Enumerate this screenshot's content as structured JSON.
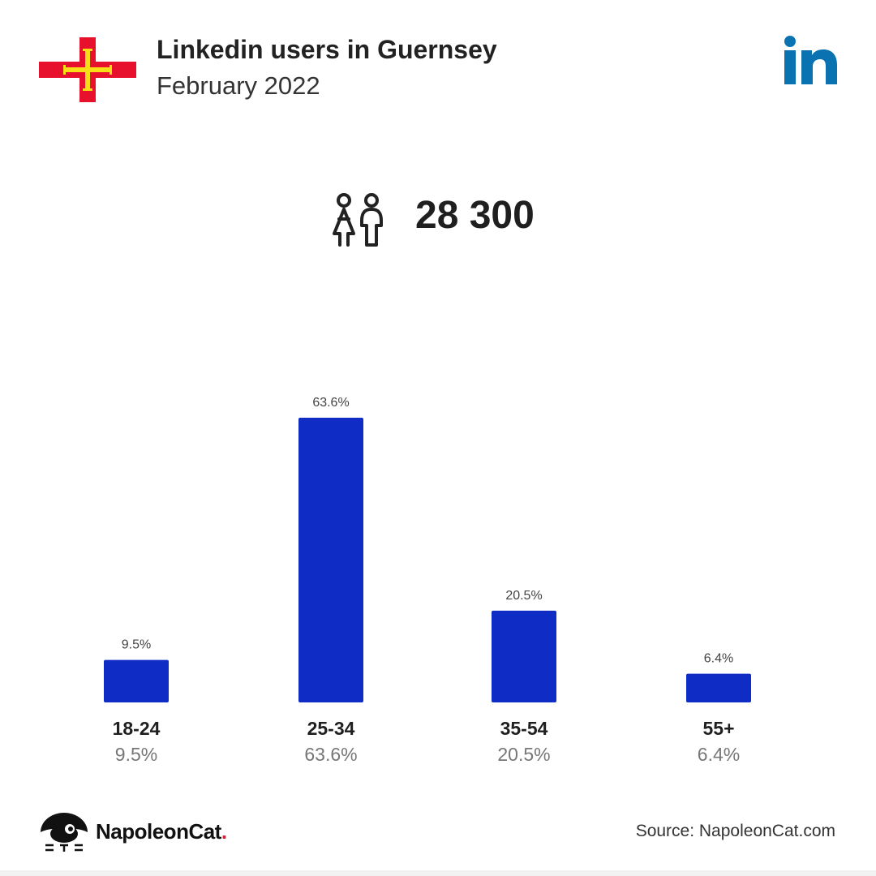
{
  "header": {
    "title": "Linkedin users in Guernsey",
    "subtitle": "February 2022"
  },
  "total_users": "28 300",
  "colors": {
    "bar": "#0f2dc5",
    "linkedin": "#0a72b0",
    "flag_red": "#e8112d",
    "flag_yellow": "#f9dd16"
  },
  "icons": {
    "flag": "guernsey-flag-icon",
    "logo": "linkedin-logo-icon",
    "users": "users-icon",
    "brand": "napoleoncat-logo-icon"
  },
  "chart_data": {
    "type": "bar",
    "categories": [
      "18-24",
      "25-34",
      "35-54",
      "55+"
    ],
    "values": [
      9.5,
      63.6,
      20.5,
      6.4
    ],
    "value_labels": [
      "9.5%",
      "63.6%",
      "20.5%",
      "6.4%"
    ],
    "ylim": [
      0,
      63.6
    ],
    "grid": false
  },
  "footer": {
    "brand": "NapoleonCat",
    "brand_dot": ".",
    "source": "Source: NapoleonCat.com"
  }
}
